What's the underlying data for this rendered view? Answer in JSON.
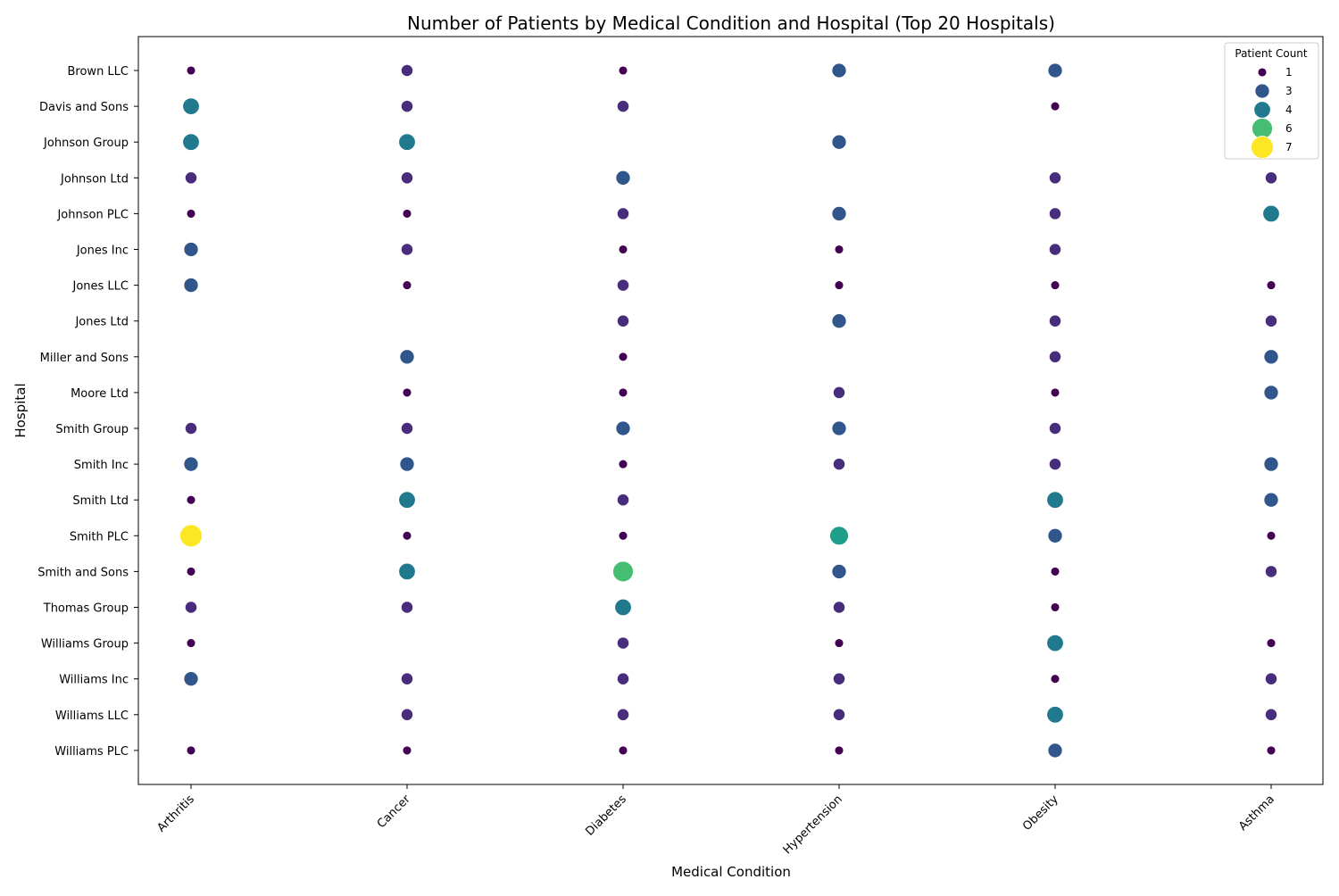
{
  "chart_data": {
    "type": "scatter",
    "title": "Number of Patients by Medical Condition and Hospital (Top 20 Hospitals)",
    "xlabel": "Medical Condition",
    "ylabel": "Hospital",
    "grid": false,
    "x_categories": [
      "Arthritis",
      "Cancer",
      "Diabetes",
      "Hypertension",
      "Obesity",
      "Asthma"
    ],
    "y_categories": [
      "Brown LLC",
      "Davis and Sons",
      "Johnson Group",
      "Johnson Ltd",
      "Johnson PLC",
      "Jones Inc",
      "Jones LLC",
      "Jones Ltd",
      "Miller and Sons",
      "Moore Ltd",
      "Smith Group",
      "Smith Inc",
      "Smith Ltd",
      "Smith PLC",
      "Smith and Sons",
      "Thomas Group",
      "Williams Group",
      "Williams Inc",
      "Williams LLC",
      "Williams PLC"
    ],
    "points": [
      {
        "hospital": "Brown LLC",
        "condition": "Arthritis",
        "count": 1
      },
      {
        "hospital": "Brown LLC",
        "condition": "Cancer",
        "count": 2
      },
      {
        "hospital": "Brown LLC",
        "condition": "Diabetes",
        "count": 1
      },
      {
        "hospital": "Brown LLC",
        "condition": "Hypertension",
        "count": 3
      },
      {
        "hospital": "Brown LLC",
        "condition": "Obesity",
        "count": 3
      },
      {
        "hospital": "Davis and Sons",
        "condition": "Arthritis",
        "count": 4
      },
      {
        "hospital": "Davis and Sons",
        "condition": "Cancer",
        "count": 2
      },
      {
        "hospital": "Davis and Sons",
        "condition": "Diabetes",
        "count": 2
      },
      {
        "hospital": "Davis and Sons",
        "condition": "Obesity",
        "count": 1
      },
      {
        "hospital": "Johnson Group",
        "condition": "Arthritis",
        "count": 4
      },
      {
        "hospital": "Johnson Group",
        "condition": "Cancer",
        "count": 4
      },
      {
        "hospital": "Johnson Group",
        "condition": "Hypertension",
        "count": 3
      },
      {
        "hospital": "Johnson Ltd",
        "condition": "Arthritis",
        "count": 2
      },
      {
        "hospital": "Johnson Ltd",
        "condition": "Cancer",
        "count": 2
      },
      {
        "hospital": "Johnson Ltd",
        "condition": "Diabetes",
        "count": 3
      },
      {
        "hospital": "Johnson Ltd",
        "condition": "Obesity",
        "count": 2
      },
      {
        "hospital": "Johnson Ltd",
        "condition": "Asthma",
        "count": 2
      },
      {
        "hospital": "Johnson PLC",
        "condition": "Arthritis",
        "count": 1
      },
      {
        "hospital": "Johnson PLC",
        "condition": "Cancer",
        "count": 1
      },
      {
        "hospital": "Johnson PLC",
        "condition": "Diabetes",
        "count": 2
      },
      {
        "hospital": "Johnson PLC",
        "condition": "Hypertension",
        "count": 3
      },
      {
        "hospital": "Johnson PLC",
        "condition": "Obesity",
        "count": 2
      },
      {
        "hospital": "Johnson PLC",
        "condition": "Asthma",
        "count": 4
      },
      {
        "hospital": "Jones Inc",
        "condition": "Arthritis",
        "count": 3
      },
      {
        "hospital": "Jones Inc",
        "condition": "Cancer",
        "count": 2
      },
      {
        "hospital": "Jones Inc",
        "condition": "Diabetes",
        "count": 1
      },
      {
        "hospital": "Jones Inc",
        "condition": "Hypertension",
        "count": 1
      },
      {
        "hospital": "Jones Inc",
        "condition": "Obesity",
        "count": 2
      },
      {
        "hospital": "Jones LLC",
        "condition": "Arthritis",
        "count": 3
      },
      {
        "hospital": "Jones LLC",
        "condition": "Cancer",
        "count": 1
      },
      {
        "hospital": "Jones LLC",
        "condition": "Diabetes",
        "count": 2
      },
      {
        "hospital": "Jones LLC",
        "condition": "Hypertension",
        "count": 1
      },
      {
        "hospital": "Jones LLC",
        "condition": "Obesity",
        "count": 1
      },
      {
        "hospital": "Jones LLC",
        "condition": "Asthma",
        "count": 1
      },
      {
        "hospital": "Jones Ltd",
        "condition": "Diabetes",
        "count": 2
      },
      {
        "hospital": "Jones Ltd",
        "condition": "Hypertension",
        "count": 3
      },
      {
        "hospital": "Jones Ltd",
        "condition": "Obesity",
        "count": 2
      },
      {
        "hospital": "Jones Ltd",
        "condition": "Asthma",
        "count": 2
      },
      {
        "hospital": "Miller and Sons",
        "condition": "Cancer",
        "count": 3
      },
      {
        "hospital": "Miller and Sons",
        "condition": "Diabetes",
        "count": 1
      },
      {
        "hospital": "Miller and Sons",
        "condition": "Obesity",
        "count": 2
      },
      {
        "hospital": "Miller and Sons",
        "condition": "Asthma",
        "count": 3
      },
      {
        "hospital": "Moore Ltd",
        "condition": "Cancer",
        "count": 1
      },
      {
        "hospital": "Moore Ltd",
        "condition": "Diabetes",
        "count": 1
      },
      {
        "hospital": "Moore Ltd",
        "condition": "Hypertension",
        "count": 2
      },
      {
        "hospital": "Moore Ltd",
        "condition": "Obesity",
        "count": 1
      },
      {
        "hospital": "Moore Ltd",
        "condition": "Asthma",
        "count": 3
      },
      {
        "hospital": "Smith Group",
        "condition": "Arthritis",
        "count": 2
      },
      {
        "hospital": "Smith Group",
        "condition": "Cancer",
        "count": 2
      },
      {
        "hospital": "Smith Group",
        "condition": "Diabetes",
        "count": 3
      },
      {
        "hospital": "Smith Group",
        "condition": "Hypertension",
        "count": 3
      },
      {
        "hospital": "Smith Group",
        "condition": "Obesity",
        "count": 2
      },
      {
        "hospital": "Smith Inc",
        "condition": "Arthritis",
        "count": 3
      },
      {
        "hospital": "Smith Inc",
        "condition": "Cancer",
        "count": 3
      },
      {
        "hospital": "Smith Inc",
        "condition": "Diabetes",
        "count": 1
      },
      {
        "hospital": "Smith Inc",
        "condition": "Hypertension",
        "count": 2
      },
      {
        "hospital": "Smith Inc",
        "condition": "Obesity",
        "count": 2
      },
      {
        "hospital": "Smith Inc",
        "condition": "Asthma",
        "count": 3
      },
      {
        "hospital": "Smith Ltd",
        "condition": "Arthritis",
        "count": 1
      },
      {
        "hospital": "Smith Ltd",
        "condition": "Cancer",
        "count": 4
      },
      {
        "hospital": "Smith Ltd",
        "condition": "Diabetes",
        "count": 2
      },
      {
        "hospital": "Smith Ltd",
        "condition": "Obesity",
        "count": 4
      },
      {
        "hospital": "Smith Ltd",
        "condition": "Asthma",
        "count": 3
      },
      {
        "hospital": "Smith PLC",
        "condition": "Arthritis",
        "count": 7
      },
      {
        "hospital": "Smith PLC",
        "condition": "Cancer",
        "count": 1
      },
      {
        "hospital": "Smith PLC",
        "condition": "Diabetes",
        "count": 1
      },
      {
        "hospital": "Smith PLC",
        "condition": "Hypertension",
        "count": 5
      },
      {
        "hospital": "Smith PLC",
        "condition": "Obesity",
        "count": 3
      },
      {
        "hospital": "Smith PLC",
        "condition": "Asthma",
        "count": 1
      },
      {
        "hospital": "Smith and Sons",
        "condition": "Arthritis",
        "count": 1
      },
      {
        "hospital": "Smith and Sons",
        "condition": "Cancer",
        "count": 4
      },
      {
        "hospital": "Smith and Sons",
        "condition": "Diabetes",
        "count": 6
      },
      {
        "hospital": "Smith and Sons",
        "condition": "Hypertension",
        "count": 3
      },
      {
        "hospital": "Smith and Sons",
        "condition": "Obesity",
        "count": 1
      },
      {
        "hospital": "Smith and Sons",
        "condition": "Asthma",
        "count": 2
      },
      {
        "hospital": "Thomas Group",
        "condition": "Arthritis",
        "count": 2
      },
      {
        "hospital": "Thomas Group",
        "condition": "Cancer",
        "count": 2
      },
      {
        "hospital": "Thomas Group",
        "condition": "Diabetes",
        "count": 4
      },
      {
        "hospital": "Thomas Group",
        "condition": "Hypertension",
        "count": 2
      },
      {
        "hospital": "Thomas Group",
        "condition": "Obesity",
        "count": 1
      },
      {
        "hospital": "Williams Group",
        "condition": "Arthritis",
        "count": 1
      },
      {
        "hospital": "Williams Group",
        "condition": "Diabetes",
        "count": 2
      },
      {
        "hospital": "Williams Group",
        "condition": "Hypertension",
        "count": 1
      },
      {
        "hospital": "Williams Group",
        "condition": "Obesity",
        "count": 4
      },
      {
        "hospital": "Williams Group",
        "condition": "Asthma",
        "count": 1
      },
      {
        "hospital": "Williams Inc",
        "condition": "Arthritis",
        "count": 3
      },
      {
        "hospital": "Williams Inc",
        "condition": "Cancer",
        "count": 2
      },
      {
        "hospital": "Williams Inc",
        "condition": "Diabetes",
        "count": 2
      },
      {
        "hospital": "Williams Inc",
        "condition": "Hypertension",
        "count": 2
      },
      {
        "hospital": "Williams Inc",
        "condition": "Obesity",
        "count": 1
      },
      {
        "hospital": "Williams Inc",
        "condition": "Asthma",
        "count": 2
      },
      {
        "hospital": "Williams LLC",
        "condition": "Cancer",
        "count": 2
      },
      {
        "hospital": "Williams LLC",
        "condition": "Diabetes",
        "count": 2
      },
      {
        "hospital": "Williams LLC",
        "condition": "Hypertension",
        "count": 2
      },
      {
        "hospital": "Williams LLC",
        "condition": "Obesity",
        "count": 4
      },
      {
        "hospital": "Williams LLC",
        "condition": "Asthma",
        "count": 2
      },
      {
        "hospital": "Williams PLC",
        "condition": "Arthritis",
        "count": 1
      },
      {
        "hospital": "Williams PLC",
        "condition": "Cancer",
        "count": 1
      },
      {
        "hospital": "Williams PLC",
        "condition": "Diabetes",
        "count": 1
      },
      {
        "hospital": "Williams PLC",
        "condition": "Hypertension",
        "count": 1
      },
      {
        "hospital": "Williams PLC",
        "condition": "Obesity",
        "count": 3
      },
      {
        "hospital": "Williams PLC",
        "condition": "Asthma",
        "count": 1
      }
    ],
    "legend": {
      "title": "Patient Count",
      "placement": "top-right",
      "entries": [
        1,
        3,
        4,
        6,
        7
      ]
    },
    "colors": {
      "1": "#440154",
      "2": "#472d7b",
      "3": "#31568c",
      "4": "#21798e",
      "5": "#1f9e89",
      "6": "#45be71",
      "7": "#fde725"
    }
  }
}
